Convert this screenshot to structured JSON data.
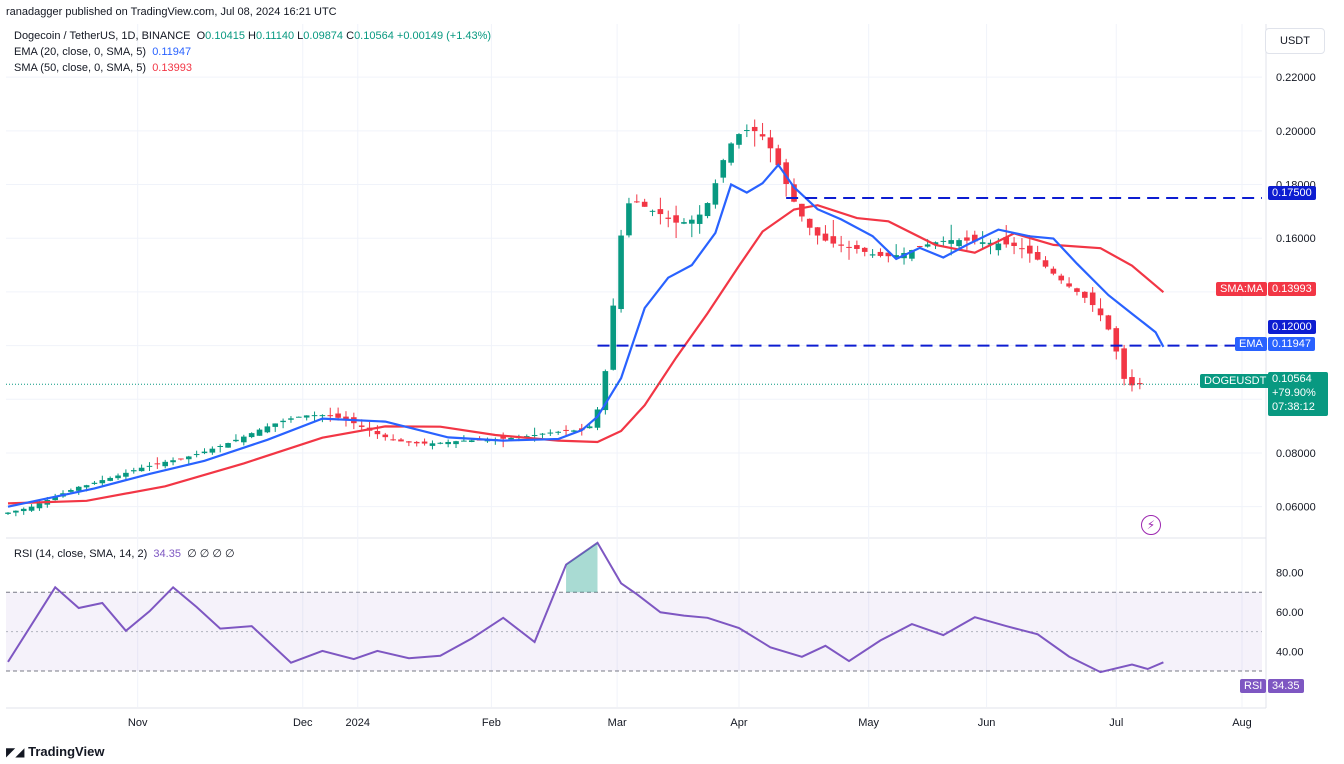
{
  "header": {
    "published": "ranadagger published on TradingView.com, Jul 08, 2024 16:21 UTC",
    "symbol": "Dogecoin / TetherUS, 1D, BINANCE",
    "ohlc_o_label": "O",
    "ohlc_o": "0.10415",
    "ohlc_h_label": "H",
    "ohlc_h": "0.11140",
    "ohlc_l_label": "L",
    "ohlc_l": "0.09874",
    "ohlc_c_label": "C",
    "ohlc_c": "0.10564",
    "change": "+0.00149 (+1.43%)",
    "ema_label": "EMA (20, close, 0, SMA, 5)",
    "ema_value": "0.11947",
    "sma_label": "SMA (50, close, 0, SMA, 5)",
    "sma_value": "0.13993",
    "currency_button": "USDT"
  },
  "rsi_header": {
    "label": "RSI (14, close, SMA, 14, 2)",
    "value": "34.35",
    "extras": "∅ ∅ ∅ ∅"
  },
  "badges": {
    "resistance_high": "0.17500",
    "sma_tag": "SMA:MA",
    "sma_value": "0.13993",
    "support_line": "0.12000",
    "ema_tag": "EMA",
    "ema_value": "0.11947",
    "symbol_tag": "DOGEUSDT",
    "price": "0.10564",
    "pct": "+79.90%",
    "countdown": "07:38:12",
    "rsi_tag": "RSI",
    "rsi_value": "34.35"
  },
  "footer": {
    "brand": "TradingView"
  },
  "colors": {
    "up": "#089981",
    "down": "#f23645",
    "ema": "#2962ff",
    "sma": "#f23645",
    "rsi": "#7e57c2",
    "level": "#0d1dd1"
  },
  "chart_data": {
    "type": "candlestick",
    "price_axis": {
      "ticks": [
        "0.22000",
        "0.20000",
        "0.18000",
        "0.16000",
        "0.08000",
        "0.06000"
      ],
      "ylim": [
        0.0487,
        0.2398
      ]
    },
    "time_axis": {
      "labels": [
        "Nov",
        "Dec",
        "2024",
        "Feb",
        "Mar",
        "Apr",
        "May",
        "Jun",
        "Jul",
        "Aug"
      ]
    },
    "horizontal_levels": [
      0.175,
      0.12
    ],
    "close_series": [
      0.0578,
      0.0585,
      0.0592,
      0.06,
      0.0612,
      0.0625,
      0.0637,
      0.065,
      0.0662,
      0.0674,
      0.068,
      0.0689,
      0.0699,
      0.0707,
      0.0716,
      0.0726,
      0.0736,
      0.0745,
      0.0752,
      0.076,
      0.0767,
      0.0773,
      0.0778,
      0.0787,
      0.0796,
      0.0805,
      0.0816,
      0.0826,
      0.0837,
      0.0849,
      0.0861,
      0.0874,
      0.0887,
      0.0899,
      0.091,
      0.092,
      0.0929,
      0.0935,
      0.094,
      0.0941,
      0.0941,
      0.0937,
      0.0931,
      0.0922,
      0.0911,
      0.0897,
      0.0883,
      0.087,
      0.0859,
      0.085,
      0.0843,
      0.0839,
      0.0836,
      0.0835,
      0.0836,
      0.0838,
      0.0841,
      0.0844,
      0.0846,
      0.0847,
      0.0848,
      0.0849,
      0.0851,
      0.0853,
      0.0856,
      0.0859,
      0.0863,
      0.0867,
      0.0872,
      0.0876,
      0.0879,
      0.0882,
      0.0884,
      0.0885,
      0.0899,
      0.0962,
      0.1105,
      0.1349,
      0.161,
      0.173,
      0.1736,
      0.1717,
      0.1702,
      0.169,
      0.1672,
      0.1658,
      0.166,
      0.1669,
      0.1688,
      0.1731,
      0.1805,
      0.1891,
      0.1953,
      0.1988,
      0.2003,
      0.1999,
      0.1979,
      0.1935,
      0.1872,
      0.1802,
      0.1736,
      0.1681,
      0.1639,
      0.161,
      0.1591,
      0.158,
      0.1572,
      0.1567,
      0.156,
      0.1549,
      0.154,
      0.1534,
      0.1533,
      0.1537,
      0.1545,
      0.1556,
      0.1567,
      0.1577,
      0.1585,
      0.159,
      0.1593,
      0.1593,
      0.1591,
      0.1588,
      0.1585,
      0.1583,
      0.158,
      0.1577,
      0.1571,
      0.156,
      0.1543,
      0.152,
      0.1494,
      0.1468,
      0.1443,
      0.142,
      0.14,
      0.1378,
      0.1351,
      0.1313,
      0.126,
      0.1178,
      0.1076,
      0.1052,
      0.1056
    ],
    "ema20": {
      "date_index": [
        0,
        11,
        18,
        25,
        33,
        40,
        48,
        56,
        63,
        70,
        73,
        75,
        78,
        81,
        84,
        87,
        90,
        92,
        94,
        96,
        98,
        100,
        103,
        106,
        110,
        113,
        116,
        119,
        122,
        126,
        130,
        133,
        136,
        140,
        143,
        146,
        147
      ],
      "values": [
        0.06,
        0.0668,
        0.0722,
        0.0771,
        0.0849,
        0.0928,
        0.0917,
        0.0858,
        0.0846,
        0.0852,
        0.0885,
        0.0935,
        0.1079,
        0.134,
        0.1453,
        0.15,
        0.162,
        0.18,
        0.177,
        0.1805,
        0.1873,
        0.179,
        0.1708,
        0.167,
        0.1608,
        0.1523,
        0.1564,
        0.1528,
        0.1575,
        0.1632,
        0.1607,
        0.1599,
        0.1505,
        0.1388,
        0.1319,
        0.125,
        0.1195
      ]
    },
    "sma50": {
      "date_index": [
        0,
        10,
        20,
        30,
        40,
        48,
        55,
        62,
        70,
        75,
        78,
        81,
        85,
        89,
        93,
        96,
        100,
        103,
        108,
        112,
        118,
        123,
        128,
        133,
        139,
        143,
        147
      ],
      "values": [
        0.0612,
        0.0622,
        0.0676,
        0.0761,
        0.0857,
        0.0899,
        0.0898,
        0.0867,
        0.0846,
        0.0841,
        0.0882,
        0.0978,
        0.1155,
        0.132,
        0.1497,
        0.1625,
        0.1707,
        0.1723,
        0.1675,
        0.1663,
        0.1575,
        0.1546,
        0.1618,
        0.1575,
        0.1563,
        0.1498,
        0.1399
      ]
    },
    "rsi": {
      "date_index": [
        0,
        6,
        9,
        12,
        15,
        18,
        21,
        24,
        27,
        31,
        36,
        40,
        44,
        47,
        51,
        55,
        59,
        63,
        67,
        71,
        75,
        78,
        80,
        83,
        86,
        89,
        93,
        97,
        101,
        104,
        107,
        111,
        115,
        119,
        123,
        127,
        131,
        135,
        139,
        143,
        145,
        147
      ],
      "values": [
        34.6,
        72.5,
        62.0,
        64.5,
        50.4,
        60.3,
        72.5,
        62.5,
        51.5,
        52.8,
        34.2,
        40.2,
        36.0,
        40.2,
        36.5,
        37.7,
        46.5,
        57.0,
        44.7,
        84.0,
        95.1,
        74.5,
        69.0,
        59.8,
        58.1,
        57.0,
        51.8,
        42.0,
        37.2,
        42.8,
        35.0,
        45.5,
        53.8,
        48.2,
        57.3,
        52.8,
        48.6,
        37.3,
        29.4,
        33.3,
        31.0,
        34.4
      ]
    },
    "rsi_axis": {
      "ticks": [
        "80.00",
        "60.00",
        "40.00"
      ],
      "ylim": [
        11.7,
        96.0
      ],
      "levels": [
        70,
        30
      ]
    }
  }
}
